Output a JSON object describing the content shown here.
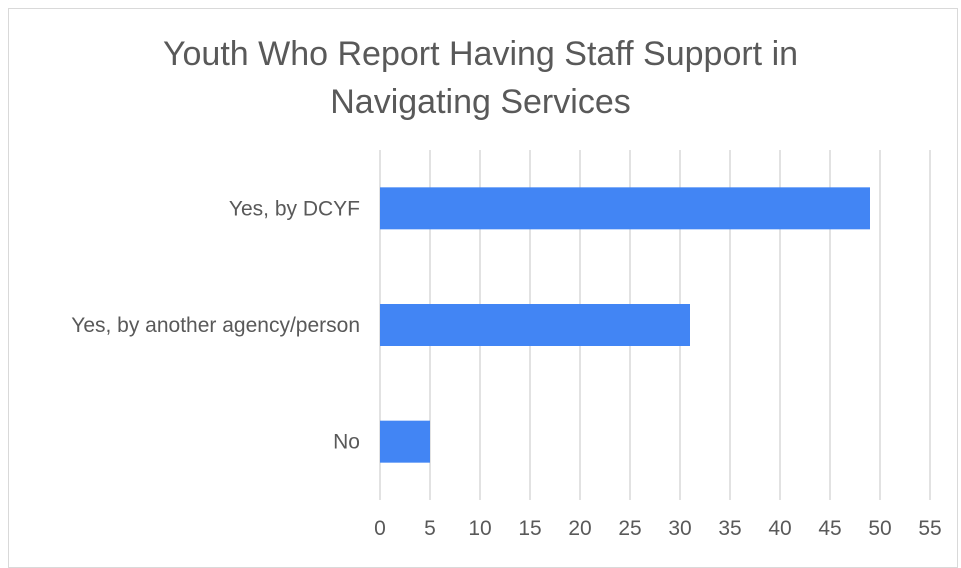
{
  "chart_data": {
    "type": "bar",
    "orientation": "horizontal",
    "title_lines": [
      "Youth Who Report Having Staff Support in",
      "Navigating Services"
    ],
    "categories": [
      "Yes, by DCYF",
      "Yes, by another agency/person",
      "No"
    ],
    "values": [
      49,
      31,
      5
    ],
    "xlim": [
      0,
      55
    ],
    "xticks": [
      0,
      5,
      10,
      15,
      20,
      25,
      30,
      35,
      40,
      45,
      50,
      55
    ],
    "grid": true,
    "bar_color": "#4285f4",
    "grid_color": "#d9d9d9",
    "text_color": "#595959"
  }
}
